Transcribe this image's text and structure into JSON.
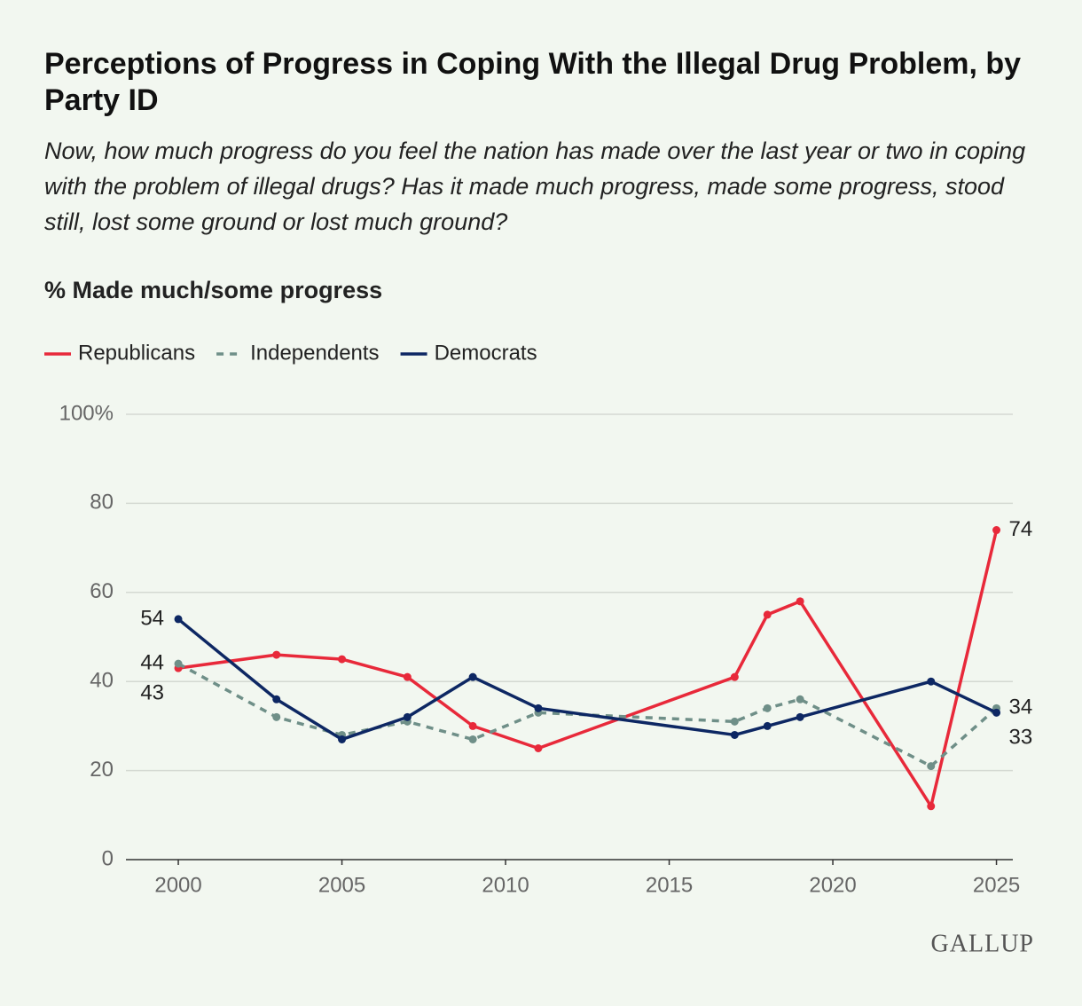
{
  "chart_data": {
    "type": "line",
    "title": "Perceptions of Progress in Coping With the Illegal Drug Problem, by Party ID",
    "subtitle": "Now, how much progress do you feel the nation has made over the last year or two in coping with the problem of illegal drugs? Has it made much progress, made some progress, stood still, lost some ground or lost much ground?",
    "y_label": "% Made much/some progress",
    "source": "GALLUP",
    "x": [
      2000,
      2003,
      2005,
      2007,
      2009,
      2011,
      2017,
      2018,
      2019,
      2023,
      2025
    ],
    "series": [
      {
        "name": "Republicans",
        "color": "#e8293a",
        "line_style": "solid",
        "values": [
          43,
          46,
          45,
          41,
          30,
          25,
          41,
          55,
          58,
          12,
          74
        ]
      },
      {
        "name": "Independents",
        "color": "#6f8f88",
        "line_style": "dashed",
        "values": [
          44,
          32,
          28,
          31,
          27,
          33,
          31,
          34,
          36,
          21,
          34
        ]
      },
      {
        "name": "Democrats",
        "color": "#0d2763",
        "line_style": "solid",
        "values": [
          54,
          36,
          27,
          32,
          41,
          34,
          28,
          30,
          32,
          40,
          33
        ]
      }
    ],
    "xlim": [
      1998.4,
      2025.5
    ],
    "xticks": [
      2000,
      2005,
      2010,
      2015,
      2020,
      2025
    ],
    "ylim": [
      0,
      100
    ],
    "yticks": [
      0,
      20,
      40,
      60,
      {
        "value": 80,
        "label": "80"
      },
      {
        "value": 100,
        "label": "100%"
      }
    ],
    "grid": true,
    "legend": "top-left"
  }
}
